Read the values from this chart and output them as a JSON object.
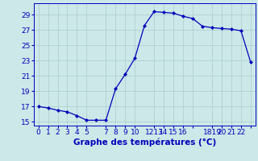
{
  "x": [
    0,
    1,
    2,
    3,
    4,
    5,
    6,
    7,
    8,
    9,
    10,
    11,
    12,
    13,
    14,
    15,
    16,
    17,
    18,
    19,
    20,
    21,
    22
  ],
  "y": [
    17.0,
    16.8,
    16.5,
    16.3,
    15.8,
    15.2,
    15.2,
    15.2,
    19.3,
    21.2,
    23.3,
    27.6,
    29.4,
    29.3,
    29.2,
    28.8,
    28.5,
    27.5,
    27.3,
    27.2,
    27.1,
    26.9,
    22.8
  ],
  "xlabel": "Graphe des températures (°C)",
  "ylim": [
    14.5,
    30.5
  ],
  "xlim": [
    -0.5,
    22.5
  ],
  "yticks": [
    15,
    17,
    19,
    21,
    23,
    25,
    27,
    29
  ],
  "x_tick_positions": [
    0,
    1,
    2,
    3,
    4,
    5,
    7,
    8,
    9,
    10,
    12,
    13,
    14,
    15,
    16,
    18,
    19,
    20,
    21,
    22
  ],
  "x_tick_labels": [
    "0",
    "1",
    "2",
    "3",
    "4",
    "5",
    "7",
    "8",
    "9",
    "10",
    "1213",
    "14",
    "15",
    "16",
    "",
    "1819",
    "20",
    "21",
    "22",
    ""
  ],
  "line_color": "#0000bb",
  "marker": "D",
  "markersize": 2.0,
  "bg_color": "#cce8e8",
  "grid_color": "#aacccc",
  "xlabel_fontsize": 7.5,
  "tick_fontsize": 6.5,
  "linewidth": 0.9
}
